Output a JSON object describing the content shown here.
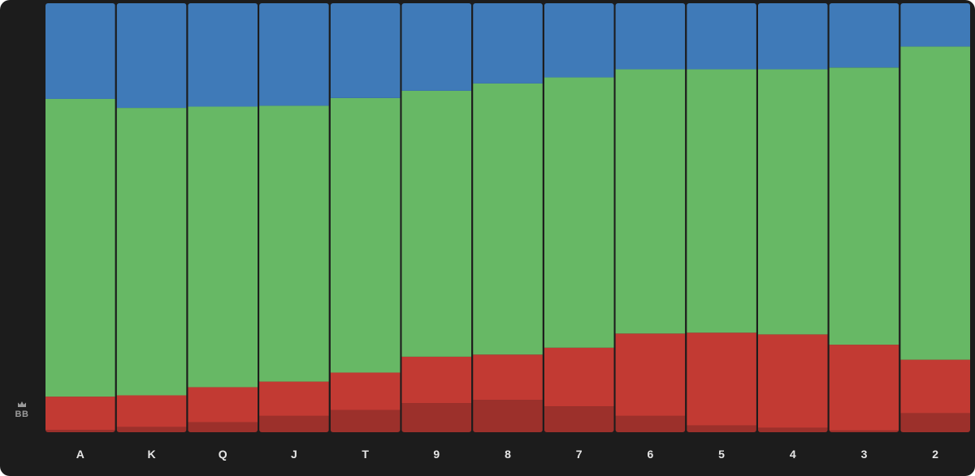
{
  "position": {
    "label": "BB",
    "icon": "crown-icon"
  },
  "chart_data": {
    "type": "bar",
    "stacked": true,
    "normalized": true,
    "categories": [
      "A",
      "K",
      "Q",
      "J",
      "T",
      "9",
      "8",
      "7",
      "6",
      "5",
      "4",
      "3",
      "2"
    ],
    "ylim": [
      0,
      100
    ],
    "grid": false,
    "series": [
      {
        "color": "#9c302b",
        "values": [
          0.5,
          1.2,
          2.3,
          3.8,
          5.2,
          6.8,
          7.5,
          6.0,
          3.8,
          1.6,
          1.0,
          0.4,
          4.4
        ]
      },
      {
        "color": "#c23a33",
        "values": [
          7.8,
          7.4,
          8.2,
          8.0,
          8.7,
          10.8,
          10.6,
          13.7,
          19.2,
          21.6,
          21.8,
          20.0,
          12.5
        ]
      },
      {
        "color": "#67b865",
        "values": [
          69.4,
          67.0,
          65.4,
          64.3,
          64.0,
          62.0,
          63.2,
          63.0,
          61.6,
          61.4,
          61.8,
          64.6,
          73.0
        ]
      },
      {
        "color": "#3f7ab8",
        "values": [
          22.3,
          24.4,
          24.1,
          23.9,
          22.1,
          20.4,
          18.7,
          17.3,
          15.4,
          15.4,
          15.4,
          15.0,
          10.1
        ]
      }
    ]
  }
}
